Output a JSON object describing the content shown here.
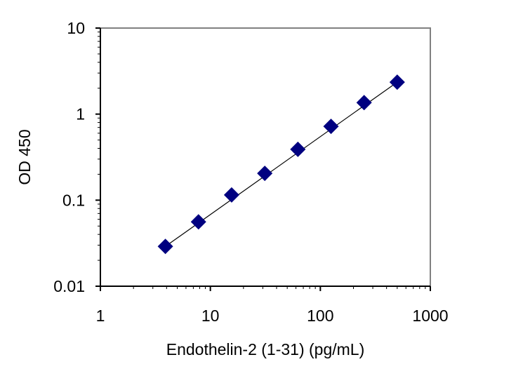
{
  "chart_data": {
    "type": "scatter",
    "title": "",
    "xlabel": "Endothelin-2 (1-31) (pg/mL)",
    "ylabel": "OD 450",
    "xscale": "log",
    "yscale": "log",
    "xlim": [
      1,
      1000
    ],
    "ylim": [
      0.01,
      10
    ],
    "x_tick_labels": [
      "1",
      "10",
      "100",
      "1000"
    ],
    "y_tick_labels": [
      "0.01",
      "0.1",
      "1",
      "10"
    ],
    "grid": false,
    "legend": "none",
    "marker": "diamond",
    "colors": {
      "marker": "#000080",
      "fit_line": "#000000",
      "frame": "#808080",
      "axis": "#000000"
    },
    "series": [
      {
        "x": [
          3.9,
          7.8,
          15.6,
          31.25,
          62.5,
          125,
          250,
          500
        ],
        "y": [
          0.029,
          0.056,
          0.115,
          0.205,
          0.39,
          0.72,
          1.36,
          2.35
        ]
      }
    ],
    "fit_line": {
      "x": [
        3.9,
        500
      ],
      "y": [
        0.029,
        2.35
      ]
    }
  }
}
